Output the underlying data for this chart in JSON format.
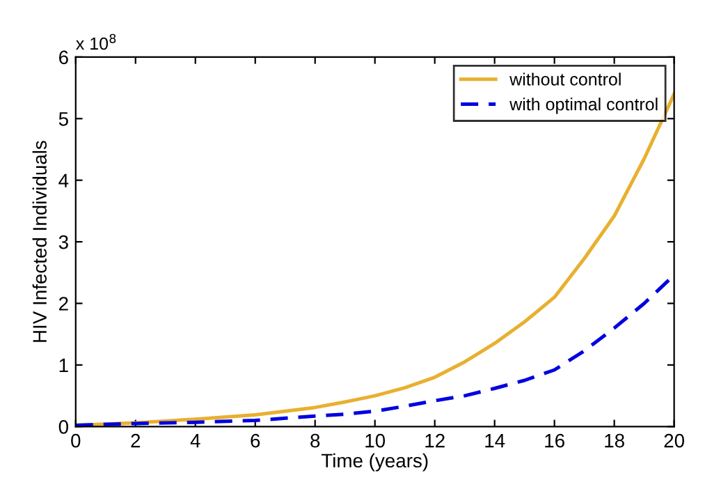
{
  "chart_data": {
    "type": "line",
    "xlabel": "Time (years)",
    "ylabel": "HIV Infected Individuals",
    "annotations": [
      "x 10$^{8}$"
    ],
    "x": [
      0,
      2,
      4,
      6,
      8,
      9,
      10,
      11,
      12,
      13,
      14,
      15,
      16,
      17,
      18,
      19,
      20
    ],
    "series": [
      {
        "name": "without control",
        "color": "#e8b030",
        "line_style": "solid",
        "values": [
          0.02,
          0.06,
          0.12,
          0.19,
          0.31,
          0.4,
          0.5,
          0.63,
          0.8,
          1.05,
          1.35,
          1.7,
          2.1,
          2.73,
          3.42,
          4.35,
          5.4
        ]
      },
      {
        "name": "with optimal control",
        "color": "#0000e0",
        "line_style": "dashed",
        "values": [
          0.02,
          0.05,
          0.07,
          0.1,
          0.17,
          0.2,
          0.25,
          0.33,
          0.42,
          0.5,
          0.62,
          0.75,
          0.92,
          1.23,
          1.6,
          2.0,
          2.46
        ]
      }
    ],
    "xlim": [
      0,
      20
    ],
    "xticks": [
      0,
      2,
      4,
      6,
      8,
      10,
      12,
      14,
      16,
      18,
      20
    ],
    "ylim": [
      0,
      6
    ],
    "yticks": [
      0,
      1,
      2,
      3,
      4,
      5,
      6
    ],
    "grid": false,
    "legend": "top right",
    "marker": "none"
  }
}
